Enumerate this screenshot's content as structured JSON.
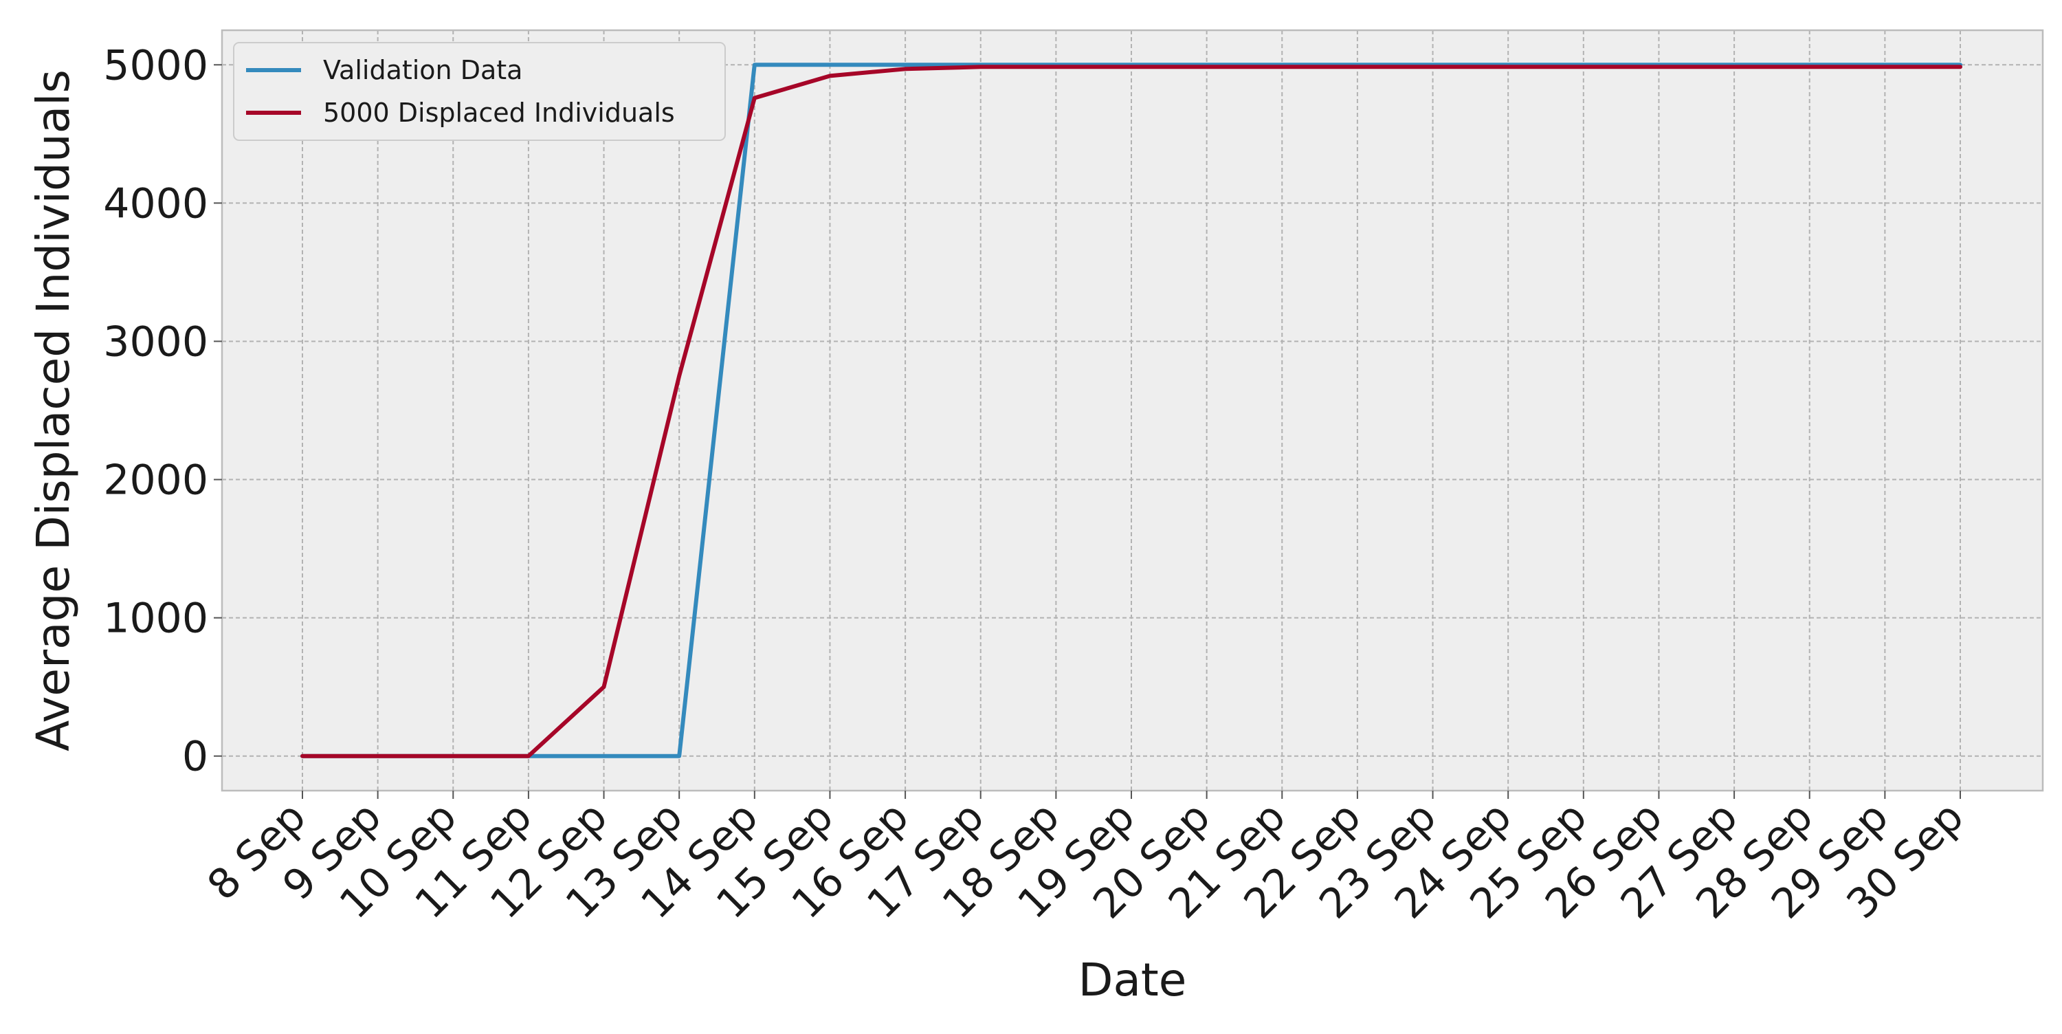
{
  "chart_data": {
    "type": "line",
    "title": "",
    "xlabel": "Date",
    "ylabel": "Average Displaced Individuals",
    "categories": [
      "8 Sep",
      "9 Sep",
      "10 Sep",
      "11 Sep",
      "12 Sep",
      "13 Sep",
      "14 Sep",
      "15 Sep",
      "16 Sep",
      "17 Sep",
      "18 Sep",
      "19 Sep",
      "20 Sep",
      "21 Sep",
      "22 Sep",
      "23 Sep",
      "24 Sep",
      "25 Sep",
      "26 Sep",
      "27 Sep",
      "28 Sep",
      "29 Sep",
      "30 Sep"
    ],
    "y_ticks": [
      "0",
      "1000",
      "2000",
      "3000",
      "4000",
      "5000"
    ],
    "ylim": [
      -250,
      5250
    ],
    "grid": true,
    "legend_position": "top-left",
    "series": [
      {
        "name": "Validation Data",
        "color": "#348ABD",
        "values": [
          0,
          0,
          0,
          0,
          0,
          0,
          5000,
          5000,
          5000,
          5000,
          5000,
          5000,
          5000,
          5000,
          5000,
          5000,
          5000,
          5000,
          5000,
          5000,
          5000,
          5000,
          5000
        ]
      },
      {
        "name": "5000 Displaced Individuals",
        "color": "#A60628",
        "values": [
          0,
          0,
          0,
          0,
          500,
          2750,
          4760,
          4920,
          4970,
          4985,
          4985,
          4985,
          4985,
          4985,
          4985,
          4985,
          4985,
          4985,
          4985,
          4985,
          4985,
          4985,
          4985
        ]
      }
    ]
  }
}
